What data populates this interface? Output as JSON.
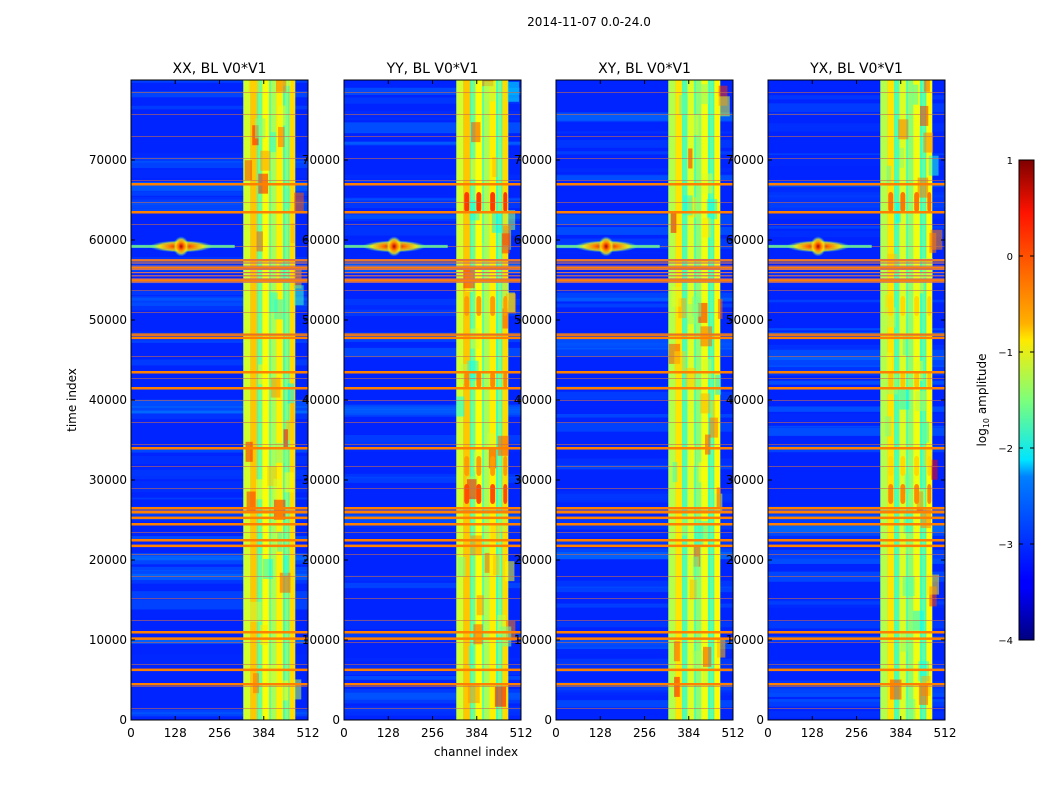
{
  "chart_data": {
    "type": "heatmap",
    "title": "2014-11-07 0.0-24.0",
    "xlabel": "channel index",
    "ylabel": "time index",
    "xlim": [
      0,
      512
    ],
    "ylim": [
      0,
      80000
    ],
    "xticks": [
      0,
      128,
      256,
      384,
      512
    ],
    "yticks": [
      0,
      10000,
      20000,
      30000,
      40000,
      50000,
      60000,
      70000
    ],
    "panels": [
      {
        "title": "XX, BL V0*V1"
      },
      {
        "title": "YY, BL V0*V1"
      },
      {
        "title": "XY, BL V0*V1"
      },
      {
        "title": "YX, BL V0*V1"
      }
    ],
    "colorbar": {
      "label": "log10 amplitude",
      "label_main": "log",
      "label_sub": "10",
      "label_tail": " amplitude",
      "min": -4,
      "max": 1,
      "ticks": [
        1,
        0,
        -1,
        -2,
        -3,
        -4
      ],
      "tick_labels": [
        "1",
        "0",
        "−1",
        "−2",
        "−3",
        "−4"
      ],
      "colormap": "jet"
    },
    "background_level": -3.2,
    "signal_band_channels": [
      325,
      475
    ],
    "source_feature": {
      "channel": 145,
      "time": 59200,
      "peak_level": 0.5
    },
    "rfi_time_rows": [
      4500,
      6300,
      10200,
      11000,
      21800,
      22500,
      24500,
      25300,
      26000,
      26500,
      34000,
      41500,
      43500,
      47800,
      48200,
      55000,
      56500,
      57500,
      63500,
      67000
    ]
  }
}
